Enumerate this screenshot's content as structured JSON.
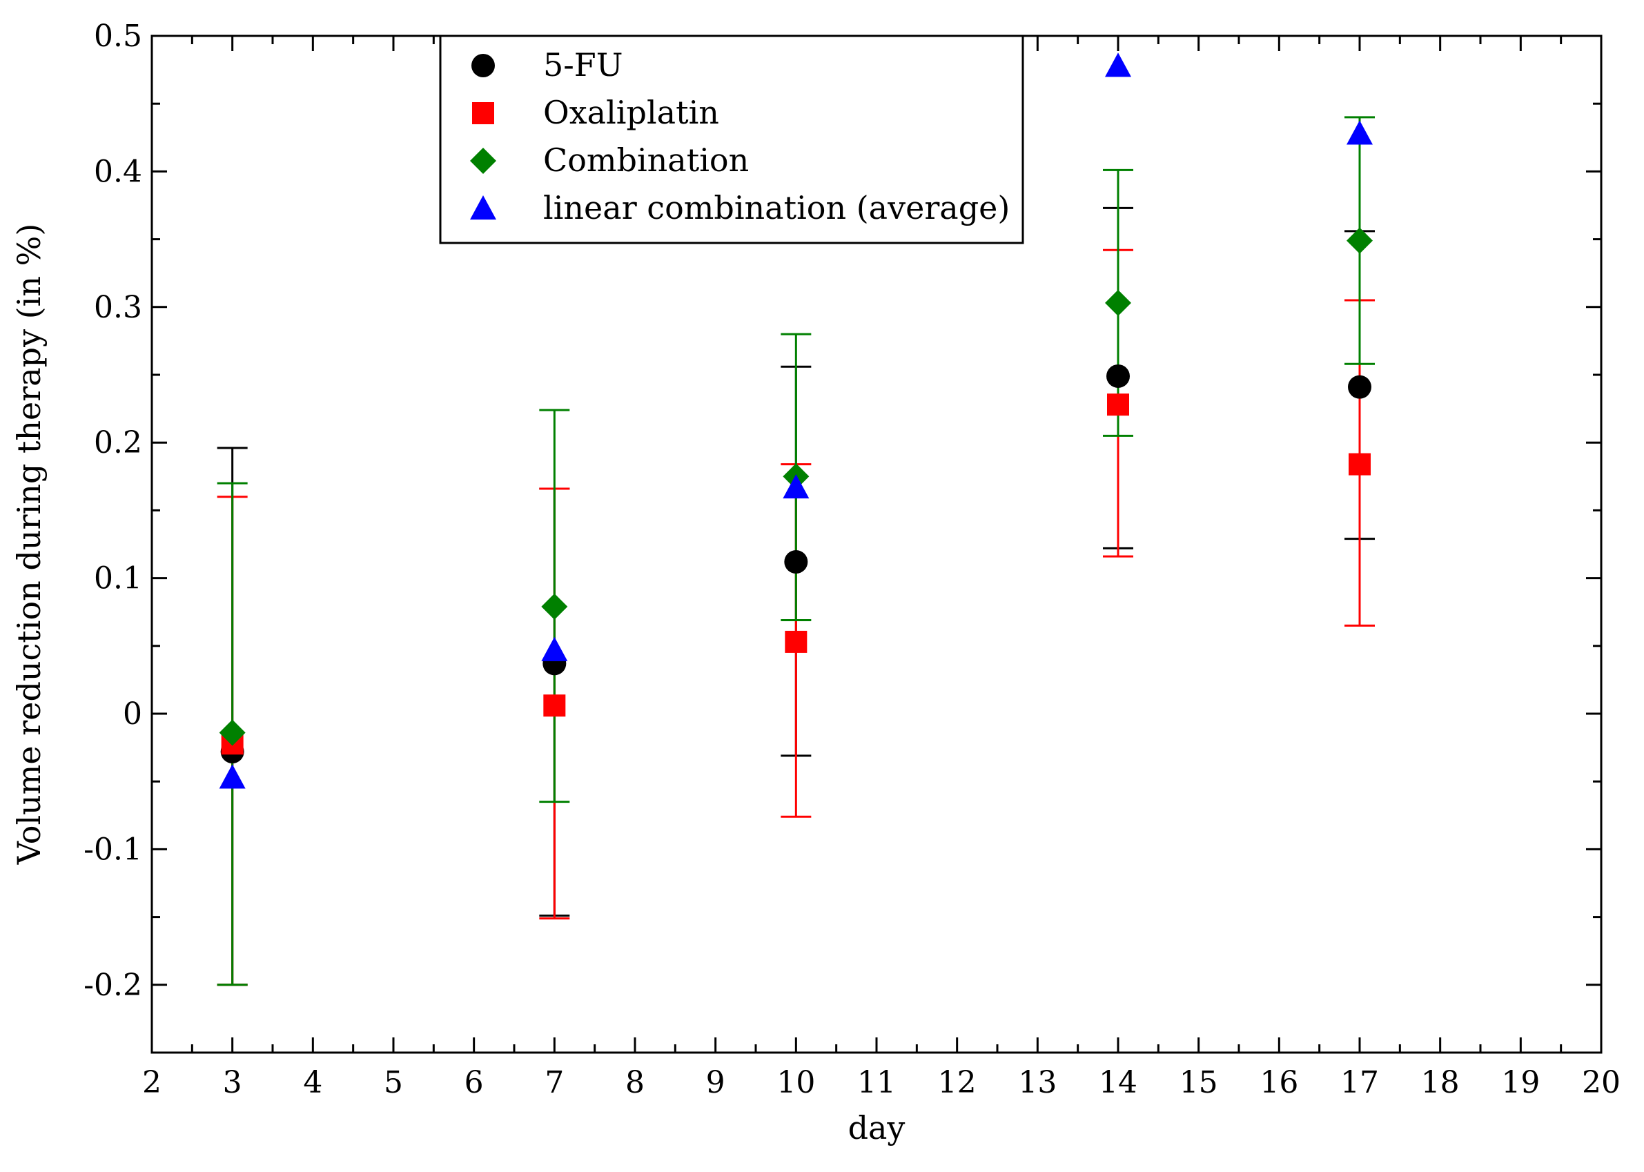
{
  "chart_data": {
    "type": "scatter",
    "title": "",
    "xlabel": "day",
    "ylabel": "Volume reduction during therapy (in %)",
    "xlim": [
      2,
      20
    ],
    "ylim": [
      -0.25,
      0.5
    ],
    "x_ticks": [
      2,
      3,
      4,
      5,
      6,
      7,
      8,
      9,
      10,
      11,
      12,
      13,
      14,
      15,
      16,
      17,
      18,
      19,
      20
    ],
    "x_tick_labels": [
      "2",
      "3",
      "4",
      "5",
      "6",
      "7",
      "8",
      "9",
      "10",
      "11",
      "12",
      "13",
      "14",
      "15",
      "16",
      "17",
      "18",
      "19",
      "20"
    ],
    "y_ticks": [
      -0.2,
      -0.1,
      0,
      0.1,
      0.2,
      0.3,
      0.4,
      0.5
    ],
    "y_tick_labels": [
      "-0.2",
      "-0.1",
      "0",
      "0.1",
      "0.2",
      "0.3",
      "0.4",
      "0.5"
    ],
    "grid": false,
    "legend_position": "top-center",
    "series": [
      {
        "name": "5-FU",
        "marker": "circle",
        "color": "#000000",
        "points": [
          {
            "x": 3,
            "y": -0.028,
            "err_low": -0.2,
            "err_high": 0.196
          },
          {
            "x": 7,
            "y": 0.037,
            "err_low": -0.149,
            "err_high": 0.166
          },
          {
            "x": 10,
            "y": 0.112,
            "err_low": -0.031,
            "err_high": 0.256
          },
          {
            "x": 14,
            "y": 0.249,
            "err_low": 0.122,
            "err_high": 0.373
          },
          {
            "x": 17,
            "y": 0.241,
            "err_low": 0.129,
            "err_high": 0.356
          }
        ]
      },
      {
        "name": "Oxaliplatin",
        "marker": "square",
        "color": "#ff0000",
        "points": [
          {
            "x": 3,
            "y": -0.022,
            "err_low": -0.2,
            "err_high": 0.16
          },
          {
            "x": 7,
            "y": 0.006,
            "err_low": -0.151,
            "err_high": 0.166
          },
          {
            "x": 10,
            "y": 0.053,
            "err_low": -0.076,
            "err_high": 0.184
          },
          {
            "x": 14,
            "y": 0.228,
            "err_low": 0.116,
            "err_high": 0.342
          },
          {
            "x": 17,
            "y": 0.184,
            "err_low": 0.065,
            "err_high": 0.305
          }
        ]
      },
      {
        "name": "Combination",
        "marker": "diamond",
        "color": "#008000",
        "points": [
          {
            "x": 3,
            "y": -0.014,
            "err_low": -0.2,
            "err_high": 0.17
          },
          {
            "x": 7,
            "y": 0.079,
            "err_low": -0.065,
            "err_high": 0.224
          },
          {
            "x": 10,
            "y": 0.175,
            "err_low": 0.069,
            "err_high": 0.28
          },
          {
            "x": 14,
            "y": 0.303,
            "err_low": 0.205,
            "err_high": 0.401
          },
          {
            "x": 17,
            "y": 0.349,
            "err_low": 0.258,
            "err_high": 0.44
          }
        ]
      },
      {
        "name": "linear combination (average)",
        "marker": "triangle",
        "color": "#0000ff",
        "points": [
          {
            "x": 3,
            "y": -0.047
          },
          {
            "x": 7,
            "y": 0.047
          },
          {
            "x": 10,
            "y": 0.167
          },
          {
            "x": 14,
            "y": 0.478
          },
          {
            "x": 17,
            "y": 0.428
          }
        ]
      }
    ]
  }
}
